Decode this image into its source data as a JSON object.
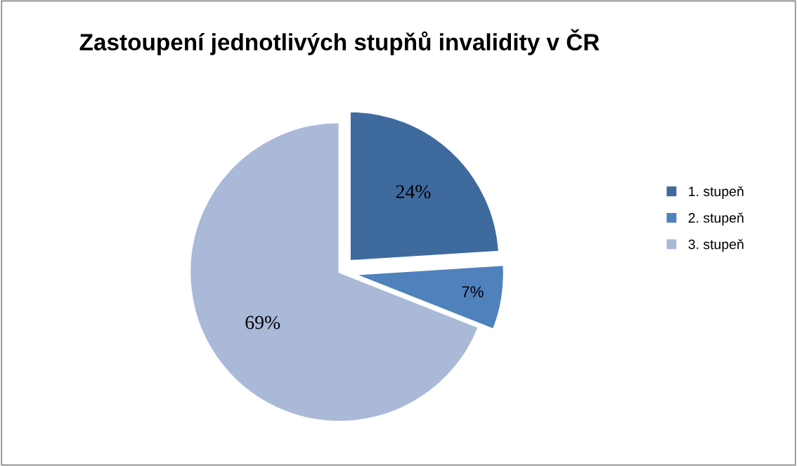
{
  "chart_data": {
    "type": "pie",
    "title": "Zastoupení jednotlivých stupňů invalidity v ČR",
    "categories": [
      "1. stupeň",
      "2. stupeň",
      "3. stupeň"
    ],
    "values": [
      24,
      7,
      69
    ],
    "value_labels": [
      "24%",
      "7%",
      "69%"
    ],
    "colors": [
      "#3f6a9e",
      "#4f81bd",
      "#aab9d8"
    ],
    "legend": "right"
  }
}
